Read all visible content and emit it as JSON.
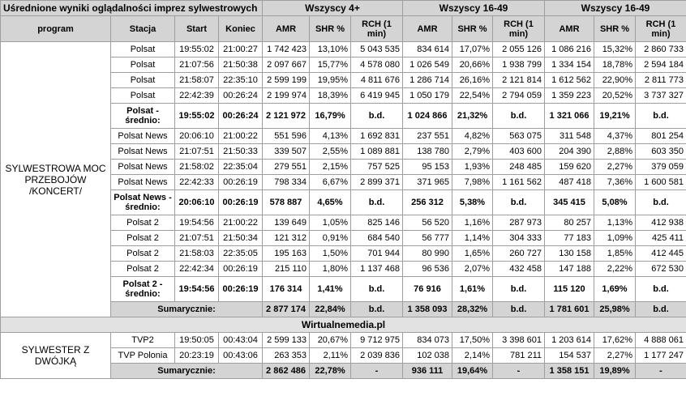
{
  "header": {
    "title": "Uśrednione wyniki oglądalności imprez sylwestrowych",
    "groups": [
      "Wszyscy 4+",
      "Wszyscy 16-49",
      "Wszyscy 16-49"
    ],
    "cols": {
      "program": "program",
      "station": "Stacja",
      "start": "Start",
      "end": "Koniec",
      "amr": "AMR",
      "shr": "SHR %",
      "rch": "RCH (1 min)"
    }
  },
  "section1": {
    "program": "SYLWESTROWA MOC PRZEBOJÓW /KONCERT/",
    "rows": [
      {
        "station": "Polsat",
        "start": "19:55:02",
        "end": "21:00:27",
        "v": [
          "1 742 423",
          "13,10%",
          "5 043 535",
          "834 614",
          "17,07%",
          "2 055 126",
          "1 086 216",
          "15,32%",
          "2 860 733"
        ]
      },
      {
        "station": "Polsat",
        "start": "21:07:56",
        "end": "21:50:38",
        "v": [
          "2 097 667",
          "15,77%",
          "4 578 080",
          "1 026 549",
          "20,66%",
          "1 938 799",
          "1 334 154",
          "18,78%",
          "2 594 184"
        ]
      },
      {
        "station": "Polsat",
        "start": "21:58:07",
        "end": "22:35:10",
        "v": [
          "2 599 199",
          "19,95%",
          "4 811 676",
          "1 286 714",
          "26,16%",
          "2 121 814",
          "1 612 562",
          "22,90%",
          "2 811 773"
        ]
      },
      {
        "station": "Polsat",
        "start": "22:42:39",
        "end": "00:26:24",
        "v": [
          "2 199 974",
          "18,39%",
          "6 419 945",
          "1 050 179",
          "22,54%",
          "2 794 059",
          "1 359 223",
          "20,52%",
          "3 737 327"
        ]
      },
      {
        "avg": true,
        "station": "Polsat - średnio:",
        "start": "19:55:02",
        "end": "00:26:24",
        "v": [
          "2 121 972",
          "16,79%",
          "b.d.",
          "1 024 866",
          "21,32%",
          "b.d.",
          "1 321 066",
          "19,21%",
          "b.d."
        ]
      },
      {
        "station": "Polsat News",
        "start": "20:06:10",
        "end": "21:00:22",
        "v": [
          "551 596",
          "4,13%",
          "1 692 831",
          "237 551",
          "4,82%",
          "563 075",
          "311 548",
          "4,37%",
          "801 254"
        ]
      },
      {
        "station": "Polsat News",
        "start": "21:07:51",
        "end": "21:50:33",
        "v": [
          "339 507",
          "2,55%",
          "1 089 881",
          "138 780",
          "2,79%",
          "403 600",
          "204 390",
          "2,88%",
          "603 350"
        ]
      },
      {
        "station": "Polsat News",
        "start": "21:58:02",
        "end": "22:35:04",
        "v": [
          "279 551",
          "2,15%",
          "757 525",
          "95 153",
          "1,93%",
          "248 485",
          "159 620",
          "2,27%",
          "379 059"
        ]
      },
      {
        "station": "Polsat News",
        "start": "22:42:33",
        "end": "00:26:19",
        "v": [
          "798 334",
          "6,67%",
          "2 899 371",
          "371 965",
          "7,98%",
          "1 161 562",
          "487 418",
          "7,36%",
          "1 600 581"
        ]
      },
      {
        "avg": true,
        "station": "Polsat News - średnio:",
        "start": "20:06:10",
        "end": "00:26:19",
        "v": [
          "578 887",
          "4,65%",
          "b.d.",
          "256 312",
          "5,38%",
          "b.d.",
          "345 415",
          "5,08%",
          "b.d."
        ]
      },
      {
        "station": "Polsat 2",
        "start": "19:54:56",
        "end": "21:00:22",
        "v": [
          "139 649",
          "1,05%",
          "825 146",
          "56 520",
          "1,16%",
          "287 973",
          "80 257",
          "1,13%",
          "412 938"
        ]
      },
      {
        "station": "Polsat 2",
        "start": "21:07:51",
        "end": "21:50:34",
        "v": [
          "121 312",
          "0,91%",
          "684 540",
          "56 777",
          "1,14%",
          "304 333",
          "77 183",
          "1,09%",
          "425 411"
        ]
      },
      {
        "station": "Polsat 2",
        "start": "21:58:03",
        "end": "22:35:05",
        "v": [
          "195 163",
          "1,50%",
          "701 944",
          "80 990",
          "1,65%",
          "260 727",
          "130 158",
          "1,85%",
          "412 445"
        ]
      },
      {
        "station": "Polsat 2",
        "start": "22:42:34",
        "end": "00:26:19",
        "v": [
          "215 110",
          "1,80%",
          "1 137 468",
          "96 536",
          "2,07%",
          "432 458",
          "147 188",
          "2,22%",
          "672 530"
        ]
      },
      {
        "avg": true,
        "station": "Polsat 2 - średnio:",
        "start": "19:54:56",
        "end": "00:26:19",
        "v": [
          "176 314",
          "1,41%",
          "b.d.",
          "76 916",
          "1,61%",
          "b.d.",
          "115 120",
          "1,69%",
          "b.d."
        ]
      }
    ],
    "summary": {
      "label": "Sumarycznie:",
      "v": [
        "2 877 174",
        "22,84%",
        "b.d.",
        "1 358 093",
        "28,32%",
        "b.d.",
        "1 781 601",
        "25,98%",
        "b.d."
      ]
    }
  },
  "watermark": "Wirtualnemedia.pl",
  "section2": {
    "program": "SYLWESTER Z DWÓJKĄ",
    "rows": [
      {
        "station": "TVP2",
        "start": "19:50:05",
        "end": "00:43:04",
        "v": [
          "2 599 133",
          "20,67%",
          "9 712 975",
          "834 073",
          "17,50%",
          "3 398 601",
          "1 203 614",
          "17,62%",
          "4 888 061"
        ]
      },
      {
        "station": "TVP Polonia",
        "start": "20:23:19",
        "end": "00:43:06",
        "v": [
          "263 353",
          "2,11%",
          "2 039 836",
          "102 038",
          "2,14%",
          "781 211",
          "154 537",
          "2,27%",
          "1 177 247"
        ]
      }
    ],
    "summary": {
      "label": "Sumarycznie:",
      "v": [
        "2 862 486",
        "22,78%",
        "-",
        "936 111",
        "19,64%",
        "-",
        "1 358 151",
        "19,89%",
        "-"
      ]
    }
  }
}
